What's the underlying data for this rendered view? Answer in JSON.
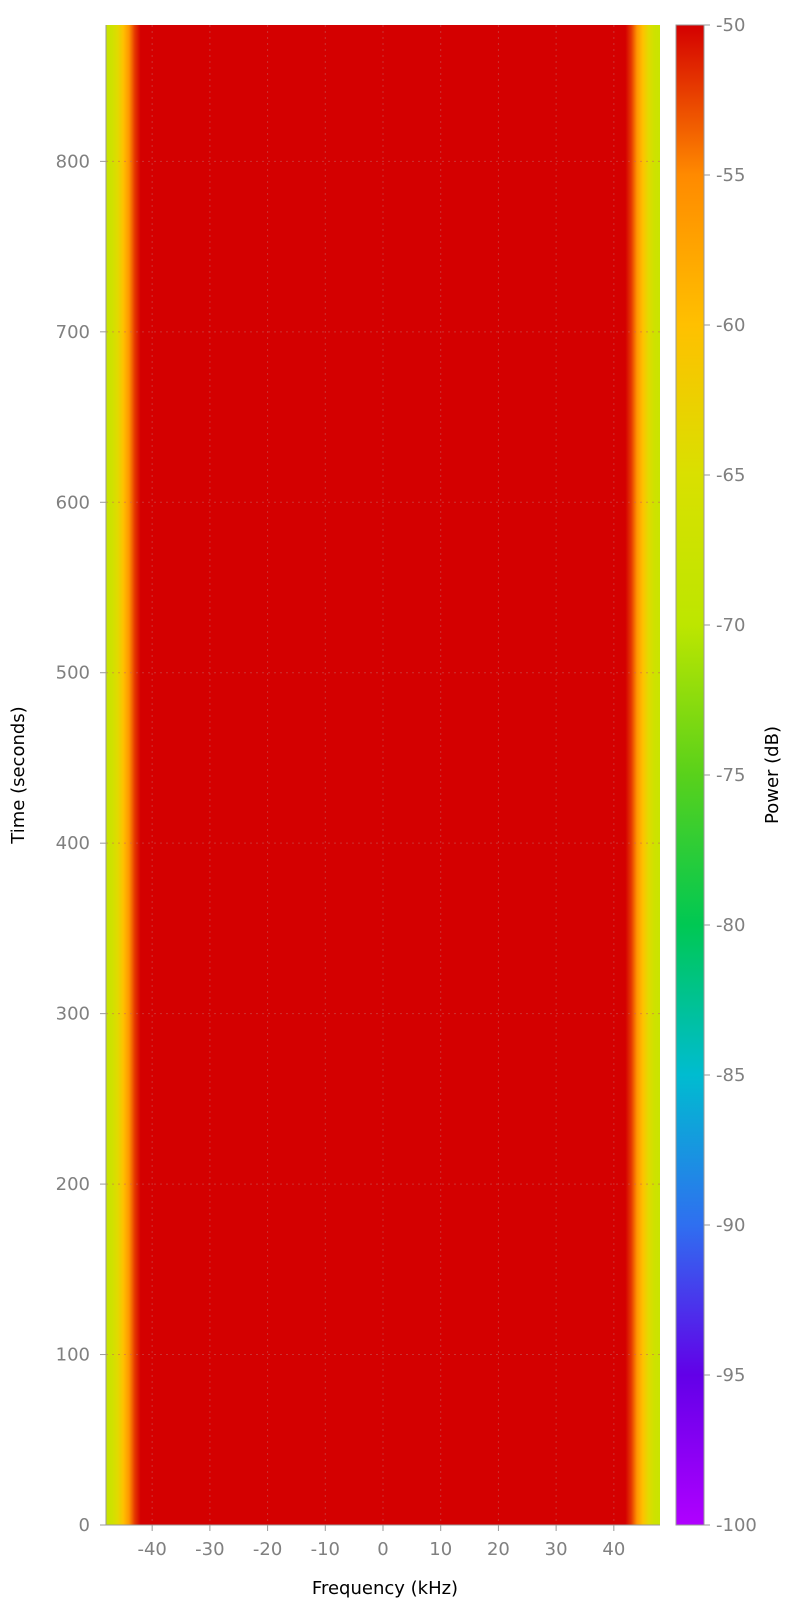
{
  "chart_data": {
    "type": "heatmap",
    "title": "",
    "xlabel": "Frequency (kHz)",
    "ylabel": "Time (seconds)",
    "colorbar_label": "Power (dB)",
    "x_range": [
      -48,
      48
    ],
    "y_range": [
      0,
      880
    ],
    "x_ticks": [
      -40,
      -30,
      -20,
      -10,
      0,
      10,
      20,
      30,
      40
    ],
    "y_ticks": [
      0,
      100,
      200,
      300,
      400,
      500,
      600,
      700,
      800
    ],
    "color_range": [
      -100,
      -50
    ],
    "colorbar_ticks": [
      -50,
      -55,
      -60,
      -65,
      -70,
      -75,
      -80,
      -85,
      -90,
      -95,
      -100
    ],
    "grid": true,
    "colormap": [
      {
        "value": -100,
        "color": "#b000ff"
      },
      {
        "value": -95,
        "color": "#6200e8"
      },
      {
        "value": -90,
        "color": "#2f6ff0"
      },
      {
        "value": -85,
        "color": "#00bcd0"
      },
      {
        "value": -80,
        "color": "#00c853"
      },
      {
        "value": -75,
        "color": "#59d11b"
      },
      {
        "value": -70,
        "color": "#bde600"
      },
      {
        "value": -65,
        "color": "#d9e000"
      },
      {
        "value": -60,
        "color": "#ffc000"
      },
      {
        "value": -55,
        "color": "#ff8a00"
      },
      {
        "value": -50,
        "color": "#d40000"
      }
    ],
    "profile": {
      "frequency_khz": [
        -48,
        -47,
        -46,
        -45,
        -44,
        -43,
        -42,
        -40,
        0,
        40,
        42,
        43,
        44,
        45,
        46,
        47,
        48
      ],
      "power_db": [
        -68,
        -67,
        -64,
        -60,
        -56,
        -52,
        -50,
        -50,
        -50,
        -50,
        -50,
        -52,
        -56,
        -60,
        -64,
        -67,
        -68
      ]
    }
  }
}
